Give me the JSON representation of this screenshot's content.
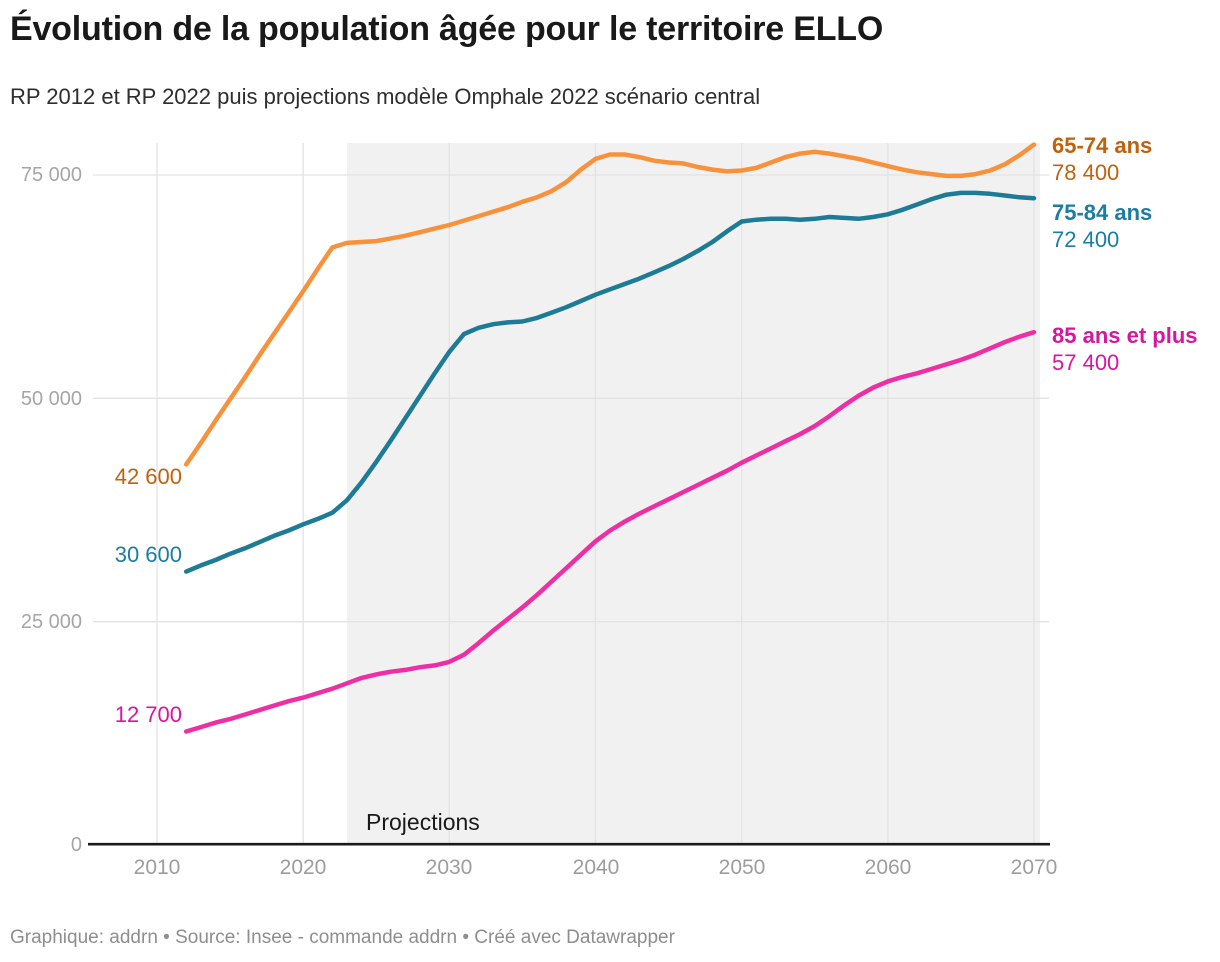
{
  "header": {
    "title": "Évolution de la population âgée pour le territoire ELLO",
    "subtitle": "RP 2012 et RP 2022 puis projections modèle Omphale 2022 scénario central"
  },
  "footer": {
    "text": "Graphique: addrn • Source: Insee - commande addrn • Créé avec Datawrapper"
  },
  "chart_data": {
    "type": "line",
    "title": "Évolution de la population âgée pour le territoire ELLO",
    "subtitle": "RP 2012 et RP 2022 puis projections modèle Omphale 2022 scénario central",
    "annotation": "Projections",
    "projection_start_year": 2023,
    "x_range": [
      2010,
      2070
    ],
    "ylim": [
      0,
      80000
    ],
    "grid": "on",
    "legend_position": "end-of-line-labels",
    "x_ticks": [
      "2010",
      "2020",
      "2030",
      "2040",
      "2050",
      "2060",
      "2070"
    ],
    "y_ticks": [
      {
        "value": 75000,
        "label": "75 000"
      },
      {
        "value": 50000,
        "label": "50 000"
      },
      {
        "value": 25000,
        "label": "25 000"
      },
      {
        "value": 0,
        "label": "0"
      }
    ],
    "colors": {
      "background": "#ffffff",
      "projection_band": "#f1f1f1",
      "gridline": "#e3e3e3",
      "axis_line": "#1a1a1a"
    },
    "series": [
      {
        "id": "65-74",
        "label": "65-74 ans",
        "start_label": "42 600",
        "end_label": "78 400",
        "color_line": "#f8913c",
        "color_text": "#c2610c",
        "points": [
          [
            2012,
            42600
          ],
          [
            2013,
            45000
          ],
          [
            2014,
            47500
          ],
          [
            2015,
            49900
          ],
          [
            2016,
            52300
          ],
          [
            2017,
            54800
          ],
          [
            2018,
            57200
          ],
          [
            2019,
            59600
          ],
          [
            2020,
            62000
          ],
          [
            2021,
            64500
          ],
          [
            2022,
            66900
          ],
          [
            2023,
            67400
          ],
          [
            2024,
            67500
          ],
          [
            2025,
            67600
          ],
          [
            2026,
            67900
          ],
          [
            2027,
            68200
          ],
          [
            2028,
            68600
          ],
          [
            2029,
            69000
          ],
          [
            2030,
            69400
          ],
          [
            2031,
            69900
          ],
          [
            2032,
            70400
          ],
          [
            2033,
            70900
          ],
          [
            2034,
            71400
          ],
          [
            2035,
            72000
          ],
          [
            2036,
            72500
          ],
          [
            2037,
            73200
          ],
          [
            2038,
            74200
          ],
          [
            2039,
            75600
          ],
          [
            2040,
            76800
          ],
          [
            2041,
            77300
          ],
          [
            2042,
            77300
          ],
          [
            2043,
            77000
          ],
          [
            2044,
            76600
          ],
          [
            2045,
            76400
          ],
          [
            2046,
            76300
          ],
          [
            2047,
            75900
          ],
          [
            2048,
            75600
          ],
          [
            2049,
            75400
          ],
          [
            2050,
            75500
          ],
          [
            2051,
            75800
          ],
          [
            2052,
            76400
          ],
          [
            2053,
            77000
          ],
          [
            2054,
            77400
          ],
          [
            2055,
            77600
          ],
          [
            2056,
            77400
          ],
          [
            2057,
            77100
          ],
          [
            2058,
            76800
          ],
          [
            2059,
            76400
          ],
          [
            2060,
            76000
          ],
          [
            2061,
            75600
          ],
          [
            2062,
            75300
          ],
          [
            2063,
            75100
          ],
          [
            2064,
            74900
          ],
          [
            2065,
            74900
          ],
          [
            2066,
            75100
          ],
          [
            2067,
            75500
          ],
          [
            2068,
            76200
          ],
          [
            2069,
            77200
          ],
          [
            2070,
            78400
          ]
        ]
      },
      {
        "id": "75-84",
        "label": "75-84 ans",
        "start_label": "30 600",
        "end_label": "72 400",
        "color_line": "#1e7b96",
        "color_text": "#1b7da1",
        "points": [
          [
            2012,
            30600
          ],
          [
            2013,
            31300
          ],
          [
            2014,
            31900
          ],
          [
            2015,
            32600
          ],
          [
            2016,
            33200
          ],
          [
            2017,
            33900
          ],
          [
            2018,
            34600
          ],
          [
            2019,
            35200
          ],
          [
            2020,
            35900
          ],
          [
            2021,
            36500
          ],
          [
            2022,
            37200
          ],
          [
            2023,
            38600
          ],
          [
            2024,
            40600
          ],
          [
            2025,
            42900
          ],
          [
            2026,
            45300
          ],
          [
            2027,
            47800
          ],
          [
            2028,
            50300
          ],
          [
            2029,
            52800
          ],
          [
            2030,
            55200
          ],
          [
            2031,
            57200
          ],
          [
            2032,
            57900
          ],
          [
            2033,
            58300
          ],
          [
            2034,
            58500
          ],
          [
            2035,
            58600
          ],
          [
            2036,
            59000
          ],
          [
            2037,
            59600
          ],
          [
            2038,
            60200
          ],
          [
            2039,
            60900
          ],
          [
            2040,
            61600
          ],
          [
            2041,
            62200
          ],
          [
            2042,
            62800
          ],
          [
            2043,
            63400
          ],
          [
            2044,
            64100
          ],
          [
            2045,
            64800
          ],
          [
            2046,
            65600
          ],
          [
            2047,
            66500
          ],
          [
            2048,
            67500
          ],
          [
            2049,
            68700
          ],
          [
            2050,
            69800
          ],
          [
            2051,
            70000
          ],
          [
            2052,
            70100
          ],
          [
            2053,
            70100
          ],
          [
            2054,
            70000
          ],
          [
            2055,
            70100
          ],
          [
            2056,
            70300
          ],
          [
            2057,
            70200
          ],
          [
            2058,
            70100
          ],
          [
            2059,
            70300
          ],
          [
            2060,
            70600
          ],
          [
            2061,
            71100
          ],
          [
            2062,
            71700
          ],
          [
            2063,
            72300
          ],
          [
            2064,
            72800
          ],
          [
            2065,
            73000
          ],
          [
            2066,
            73000
          ],
          [
            2067,
            72900
          ],
          [
            2068,
            72700
          ],
          [
            2069,
            72500
          ],
          [
            2070,
            72400
          ]
        ]
      },
      {
        "id": "85-plus",
        "label": "85 ans et plus",
        "start_label": "12 700",
        "end_label": "57 400",
        "color_line": "#ee2fa4",
        "color_text": "#d6169e",
        "points": [
          [
            2012,
            12700
          ],
          [
            2013,
            13200
          ],
          [
            2014,
            13700
          ],
          [
            2015,
            14100
          ],
          [
            2016,
            14600
          ],
          [
            2017,
            15100
          ],
          [
            2018,
            15600
          ],
          [
            2019,
            16100
          ],
          [
            2020,
            16500
          ],
          [
            2021,
            17000
          ],
          [
            2022,
            17500
          ],
          [
            2023,
            18100
          ],
          [
            2024,
            18700
          ],
          [
            2025,
            19100
          ],
          [
            2026,
            19400
          ],
          [
            2027,
            19600
          ],
          [
            2028,
            19900
          ],
          [
            2029,
            20100
          ],
          [
            2030,
            20500
          ],
          [
            2031,
            21300
          ],
          [
            2032,
            22600
          ],
          [
            2033,
            24000
          ],
          [
            2034,
            25300
          ],
          [
            2035,
            26600
          ],
          [
            2036,
            28000
          ],
          [
            2037,
            29500
          ],
          [
            2038,
            31000
          ],
          [
            2039,
            32500
          ],
          [
            2040,
            34000
          ],
          [
            2041,
            35200
          ],
          [
            2042,
            36200
          ],
          [
            2043,
            37100
          ],
          [
            2044,
            37900
          ],
          [
            2045,
            38700
          ],
          [
            2046,
            39500
          ],
          [
            2047,
            40300
          ],
          [
            2048,
            41100
          ],
          [
            2049,
            41900
          ],
          [
            2050,
            42800
          ],
          [
            2051,
            43600
          ],
          [
            2052,
            44400
          ],
          [
            2053,
            45200
          ],
          [
            2054,
            46000
          ],
          [
            2055,
            46900
          ],
          [
            2056,
            48000
          ],
          [
            2057,
            49200
          ],
          [
            2058,
            50300
          ],
          [
            2059,
            51200
          ],
          [
            2060,
            51900
          ],
          [
            2061,
            52400
          ],
          [
            2062,
            52800
          ],
          [
            2063,
            53300
          ],
          [
            2064,
            53800
          ],
          [
            2065,
            54300
          ],
          [
            2066,
            54900
          ],
          [
            2067,
            55600
          ],
          [
            2068,
            56300
          ],
          [
            2069,
            56900
          ],
          [
            2070,
            57400
          ]
        ]
      }
    ]
  }
}
